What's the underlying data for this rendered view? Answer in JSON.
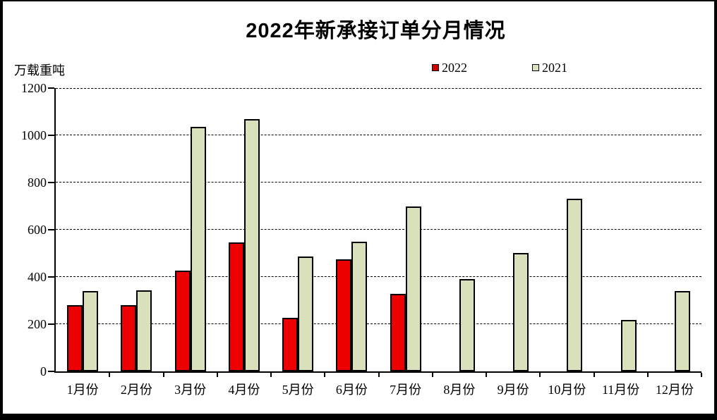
{
  "chart_data": {
    "type": "bar",
    "title": "2022年新承接订单分月情况",
    "unit_label": "万载重吨",
    "categories": [
      "1月份",
      "2月份",
      "3月份",
      "4月份",
      "5月份",
      "6月份",
      "7月份",
      "8月份",
      "9月份",
      "10月份",
      "11月份",
      "12月份"
    ],
    "series": [
      {
        "name": "2022",
        "color": "#ec0000",
        "legend_color": "#cc0000",
        "values": [
          280,
          281,
          427,
          547,
          228,
          476,
          327,
          null,
          null,
          null,
          null,
          null
        ]
      },
      {
        "name": "2021",
        "color": "#d8e0bc",
        "legend_color": "#d8e0bc",
        "values": [
          340,
          342,
          1037,
          1068,
          488,
          550,
          698,
          390,
          502,
          731,
          217,
          341
        ]
      }
    ],
    "ylim": [
      0,
      1200
    ],
    "ytick_step": 200,
    "yticks": [
      "0",
      "200",
      "400",
      "600",
      "800",
      "1000",
      "1200"
    ],
    "grid": "horizontal-dashed",
    "legend_position": "top-center",
    "plot_background": "#ffffff"
  }
}
